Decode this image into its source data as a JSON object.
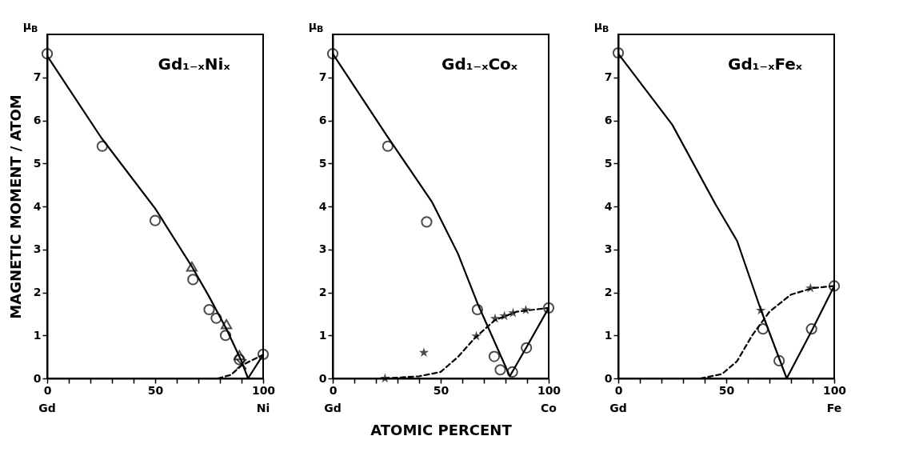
{
  "chart_data": [
    {
      "type": "line",
      "title": "Gd₁₋ₓNiₓ",
      "ylabel": "MAGNETIC MOMENT / ATOM",
      "annotations": [
        "μ$_{B}$",
        "Gd",
        "Ni"
      ],
      "xlim": [
        0,
        100
      ],
      "ylim": [
        0,
        8
      ],
      "xticks": [
        {
          "value": 0,
          "label": "0"
        },
        {
          "value": 10,
          "label": null
        },
        {
          "value": 20,
          "label": null
        },
        {
          "value": 30,
          "label": null
        },
        {
          "value": 40,
          "label": null
        },
        {
          "value": 50,
          "label": "50"
        },
        {
          "value": 60,
          "label": null
        },
        {
          "value": 70,
          "label": null
        },
        {
          "value": 80,
          "label": null
        },
        {
          "value": 90,
          "label": null
        },
        {
          "value": 100,
          "label": "100"
        }
      ],
      "yticks": [
        0,
        1,
        2,
        3,
        4,
        5,
        6,
        7
      ],
      "grid": false,
      "legend": false,
      "series": [
        {
          "color": "#000000",
          "line_style": "solid",
          "marker": "none",
          "x": [
            0,
            25,
            50,
            67,
            75,
            83,
            90,
            93,
            100
          ],
          "values": [
            7.5,
            5.6,
            3.95,
            2.6,
            1.9,
            1.15,
            0.4,
            0,
            0.55
          ]
        },
        {
          "color": "#000000",
          "line_style": "dashed",
          "marker": "none",
          "x": [
            79,
            85,
            90,
            100
          ],
          "values": [
            0,
            0.08,
            0.3,
            0.55
          ]
        },
        {
          "type": "scatter",
          "color": "#000000",
          "marker": "circle",
          "x": [
            0,
            25.5,
            50,
            67.5,
            75,
            78.3,
            82.6,
            89
          ],
          "values": [
            7.55,
            5.4,
            3.67,
            2.3,
            1.6,
            1.4,
            1.0,
            0.44
          ]
        },
        {
          "type": "scatter",
          "color": "#000000",
          "marker": "triangle",
          "x": [
            67,
            83,
            89
          ],
          "values": [
            2.6,
            1.26,
            0.54
          ]
        },
        {
          "type": "scatter",
          "color": "#000000",
          "marker": "cross",
          "x": [
            90
          ],
          "values": [
            0.33
          ]
        },
        {
          "type": "scatter",
          "color": "#000000",
          "marker": "circle",
          "x": [
            100
          ],
          "values": [
            0.56
          ]
        }
      ]
    },
    {
      "type": "line",
      "title": "Gd₁₋ₓCoₓ",
      "xlabel": "ATOMIC PERCENT",
      "annotations": [
        "μ$_{B}$",
        "Gd",
        "Co"
      ],
      "xlim": [
        0,
        100
      ],
      "ylim": [
        0,
        8
      ],
      "xticks": [
        {
          "value": 0,
          "label": "0"
        },
        {
          "value": 10,
          "label": null
        },
        {
          "value": 20,
          "label": null
        },
        {
          "value": 30,
          "label": null
        },
        {
          "value": 40,
          "label": null
        },
        {
          "value": 50,
          "label": "50"
        },
        {
          "value": 60,
          "label": null
        },
        {
          "value": 70,
          "label": null
        },
        {
          "value": 80,
          "label": null
        },
        {
          "value": 90,
          "label": null
        },
        {
          "value": 100,
          "label": "100"
        }
      ],
      "yticks": [
        0,
        1,
        2,
        3,
        4,
        5,
        6,
        7
      ],
      "grid": false,
      "legend": false,
      "series": [
        {
          "color": "#000000",
          "line_style": "solid",
          "marker": "none",
          "x": [
            0,
            25,
            46,
            58,
            67,
            82,
            90,
            100
          ],
          "values": [
            7.55,
            5.65,
            4.1,
            2.9,
            1.75,
            0.05,
            0.75,
            1.64
          ]
        },
        {
          "color": "#000000",
          "line_style": "dashed",
          "marker": "none",
          "x": [
            24,
            40,
            50,
            58,
            66,
            75,
            85,
            100
          ],
          "values": [
            0,
            0.05,
            0.15,
            0.5,
            0.95,
            1.35,
            1.55,
            1.64
          ]
        },
        {
          "type": "scatter",
          "color": "#000000",
          "marker": "circle",
          "x": [
            0,
            25.5,
            43.5,
            67,
            74.8,
            77.6,
            83.2,
            89.7
          ],
          "values": [
            7.55,
            5.4,
            3.64,
            1.6,
            0.51,
            0.2,
            0.15,
            0.71
          ]
        },
        {
          "type": "scatter",
          "color": "#000000",
          "marker": "star",
          "x": [
            24.2,
            42.2,
            66.5,
            75.2,
            79.5,
            83.5,
            89.4
          ],
          "values": [
            0,
            0.6,
            0.98,
            1.39,
            1.45,
            1.52,
            1.59
          ]
        },
        {
          "type": "scatter",
          "color": "#000000",
          "marker": "circle",
          "x": [
            100
          ],
          "values": [
            1.64
          ]
        }
      ]
    },
    {
      "type": "line",
      "title": "Gd₁₋ₓFeₓ",
      "annotations": [
        "μ$_{B}$",
        "Gd",
        "Fe"
      ],
      "xlim": [
        0,
        100
      ],
      "ylim": [
        0,
        8
      ],
      "xticks": [
        {
          "value": 0,
          "label": "0"
        },
        {
          "value": 10,
          "label": null
        },
        {
          "value": 20,
          "label": null
        },
        {
          "value": 30,
          "label": null
        },
        {
          "value": 40,
          "label": null
        },
        {
          "value": 50,
          "label": "50"
        },
        {
          "value": 60,
          "label": null
        },
        {
          "value": 70,
          "label": null
        },
        {
          "value": 80,
          "label": null
        },
        {
          "value": 90,
          "label": null
        },
        {
          "value": 100,
          "label": "100"
        }
      ],
      "yticks": [
        0,
        1,
        2,
        3,
        4,
        5,
        6,
        7
      ],
      "grid": false,
      "legend": false,
      "series": [
        {
          "color": "#000000",
          "line_style": "solid",
          "marker": "none",
          "x": [
            0,
            25,
            45,
            55,
            66,
            78,
            90,
            100
          ],
          "values": [
            7.55,
            5.9,
            4.05,
            3.2,
            1.6,
            0,
            1.15,
            2.15
          ]
        },
        {
          "color": "#000000",
          "line_style": "dashed",
          "marker": "none",
          "x": [
            38,
            48,
            55,
            62,
            70,
            80,
            90,
            100
          ],
          "values": [
            0,
            0.1,
            0.4,
            1.0,
            1.55,
            1.95,
            2.1,
            2.15
          ]
        },
        {
          "type": "scatter",
          "color": "#000000",
          "marker": "circle",
          "x": [
            0,
            67,
            74.5,
            89.5
          ],
          "values": [
            7.57,
            1.15,
            0.41,
            1.15
          ]
        },
        {
          "type": "scatter",
          "color": "#000000",
          "marker": "star",
          "x": [
            66,
            89
          ],
          "values": [
            1.58,
            2.1
          ]
        },
        {
          "type": "scatter",
          "color": "#000000",
          "marker": "circle",
          "x": [
            100
          ],
          "values": [
            2.15
          ]
        }
      ]
    }
  ]
}
